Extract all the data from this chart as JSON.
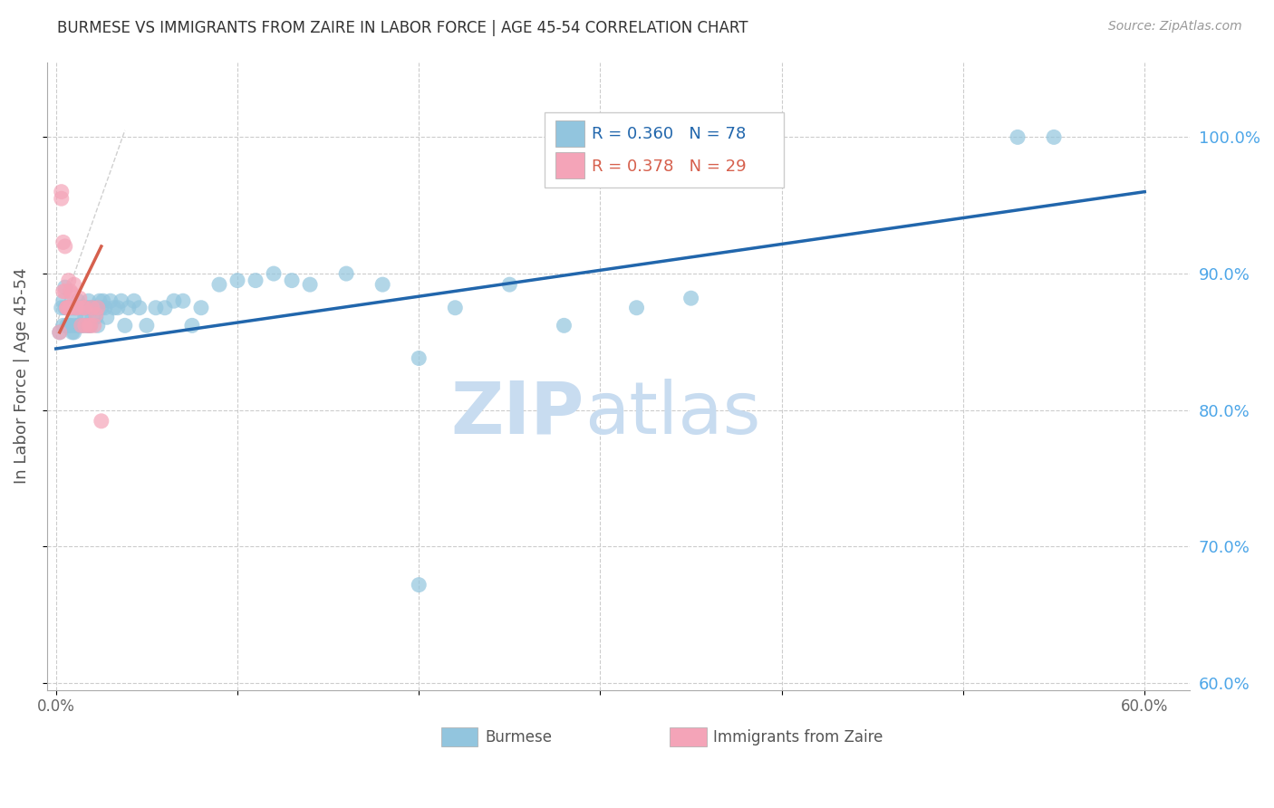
{
  "title": "BURMESE VS IMMIGRANTS FROM ZAIRE IN LABOR FORCE | AGE 45-54 CORRELATION CHART",
  "source": "Source: ZipAtlas.com",
  "ylabel": "In Labor Force | Age 45-54",
  "x_ticks": [
    0.0,
    0.1,
    0.2,
    0.3,
    0.4,
    0.5,
    0.6
  ],
  "x_tick_labels": [
    "0.0%",
    "",
    "",
    "",
    "",
    "",
    "60.0%"
  ],
  "y_ticks_right": [
    0.6,
    0.7,
    0.8,
    0.9,
    1.0
  ],
  "y_tick_labels_right": [
    "60.0%",
    "70.0%",
    "80.0%",
    "90.0%",
    "100.0%"
  ],
  "xlim": [
    -0.005,
    0.625
  ],
  "ylim": [
    0.595,
    1.055
  ],
  "legend_blue_r": "0.360",
  "legend_blue_n": "78",
  "legend_pink_r": "0.378",
  "legend_pink_n": "29",
  "blue_color": "#92c5de",
  "pink_color": "#f4a4b8",
  "blue_line_color": "#2166ac",
  "pink_line_color": "#d6604d",
  "right_axis_color": "#4da6e8",
  "watermark_color": "#c8dcf0",
  "blue_scatter_x": [
    0.002,
    0.003,
    0.004,
    0.004,
    0.005,
    0.005,
    0.006,
    0.006,
    0.007,
    0.007,
    0.008,
    0.008,
    0.009,
    0.009,
    0.01,
    0.01,
    0.01,
    0.011,
    0.011,
    0.012,
    0.012,
    0.013,
    0.013,
    0.014,
    0.014,
    0.015,
    0.015,
    0.016,
    0.016,
    0.017,
    0.017,
    0.018,
    0.018,
    0.019,
    0.019,
    0.02,
    0.02,
    0.021,
    0.022,
    0.023,
    0.023,
    0.024,
    0.025,
    0.026,
    0.027,
    0.028,
    0.03,
    0.032,
    0.034,
    0.036,
    0.038,
    0.04,
    0.043,
    0.046,
    0.05,
    0.055,
    0.06,
    0.065,
    0.07,
    0.075,
    0.08,
    0.09,
    0.1,
    0.11,
    0.12,
    0.13,
    0.14,
    0.16,
    0.18,
    0.2,
    0.22,
    0.25,
    0.28,
    0.32,
    0.35,
    0.2,
    0.53,
    0.55
  ],
  "blue_scatter_y": [
    0.857,
    0.875,
    0.862,
    0.88,
    0.875,
    0.89,
    0.862,
    0.875,
    0.862,
    0.875,
    0.862,
    0.875,
    0.857,
    0.875,
    0.862,
    0.857,
    0.875,
    0.868,
    0.875,
    0.862,
    0.88,
    0.875,
    0.862,
    0.875,
    0.862,
    0.875,
    0.862,
    0.875,
    0.868,
    0.862,
    0.875,
    0.862,
    0.88,
    0.875,
    0.862,
    0.875,
    0.868,
    0.875,
    0.868,
    0.875,
    0.862,
    0.88,
    0.875,
    0.88,
    0.875,
    0.868,
    0.88,
    0.875,
    0.875,
    0.88,
    0.862,
    0.875,
    0.88,
    0.875,
    0.862,
    0.875,
    0.875,
    0.88,
    0.88,
    0.862,
    0.875,
    0.892,
    0.895,
    0.895,
    0.9,
    0.895,
    0.892,
    0.9,
    0.892,
    0.838,
    0.875,
    0.892,
    0.862,
    0.875,
    0.882,
    0.672,
    1.0,
    1.0
  ],
  "pink_scatter_x": [
    0.002,
    0.003,
    0.003,
    0.004,
    0.004,
    0.005,
    0.005,
    0.006,
    0.006,
    0.007,
    0.007,
    0.008,
    0.008,
    0.009,
    0.01,
    0.011,
    0.012,
    0.013,
    0.014,
    0.015,
    0.016,
    0.016,
    0.018,
    0.019,
    0.02,
    0.021,
    0.022,
    0.023,
    0.025
  ],
  "pink_scatter_y": [
    0.857,
    0.955,
    0.96,
    0.923,
    0.887,
    0.92,
    0.887,
    0.875,
    0.875,
    0.875,
    0.895,
    0.875,
    0.887,
    0.885,
    0.892,
    0.875,
    0.875,
    0.882,
    0.862,
    0.875,
    0.875,
    0.862,
    0.862,
    0.862,
    0.875,
    0.862,
    0.87,
    0.875,
    0.792
  ],
  "blue_trend_x": [
    0.0,
    0.6
  ],
  "blue_trend_y": [
    0.845,
    0.96
  ],
  "pink_trend_x": [
    0.002,
    0.025
  ],
  "pink_trend_y": [
    0.857,
    0.92
  ],
  "diag_line_x": [
    0.0,
    0.038
  ],
  "diag_line_y": [
    0.862,
    1.005
  ]
}
